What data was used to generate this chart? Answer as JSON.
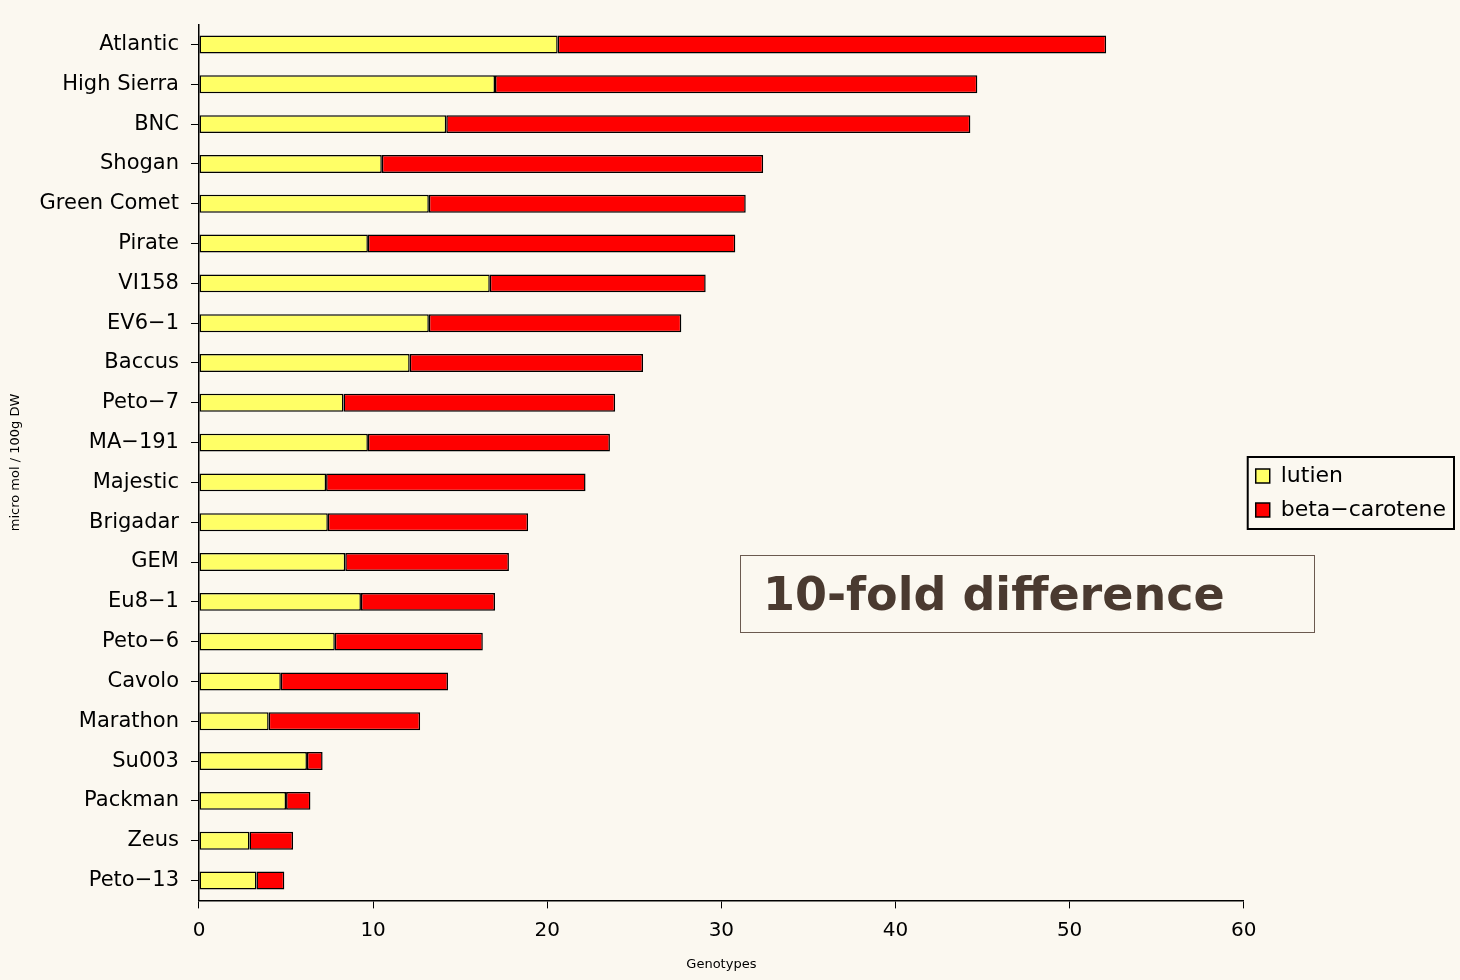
{
  "chart_data": {
    "type": "bar",
    "orientation": "horizontal",
    "stacked": true,
    "categories": [
      "Atlantic",
      "High Sierra",
      "BNC",
      "Shogan",
      "Green Comet",
      "Pirate",
      "VI158",
      "EV6−1",
      "Baccus",
      "Peto−7",
      "MA−191",
      "Majestic",
      "Brigadar",
      "GEM",
      "Eu8−1",
      "Peto−6",
      "Cavolo",
      "Marathon",
      "Su003",
      "Packman",
      "Zeus",
      "Peto−13"
    ],
    "series": [
      {
        "name": "lutien",
        "color": "#ffff66",
        "values": [
          20.6,
          17.0,
          14.2,
          10.5,
          13.2,
          9.7,
          16.7,
          13.2,
          12.1,
          8.3,
          9.7,
          7.3,
          7.4,
          8.4,
          9.3,
          7.8,
          4.7,
          4.0,
          6.2,
          5.0,
          2.9,
          3.3
        ]
      },
      {
        "name": "beta−carotene",
        "color": "#ff0000",
        "values": [
          31.5,
          27.7,
          30.1,
          21.9,
          18.2,
          21.1,
          12.4,
          14.5,
          13.4,
          15.6,
          13.9,
          14.9,
          11.5,
          9.4,
          7.7,
          8.5,
          9.6,
          8.7,
          0.9,
          1.4,
          2.5,
          1.6
        ]
      }
    ],
    "xlim": [
      0,
      60
    ],
    "xticks": [
      0,
      10,
      20,
      30,
      40,
      50,
      60
    ],
    "xlabel": "Genotypes",
    "ylabel": "micro mol / 100g DW",
    "legend": "right",
    "annotations": [
      "10-fold difference"
    ]
  }
}
